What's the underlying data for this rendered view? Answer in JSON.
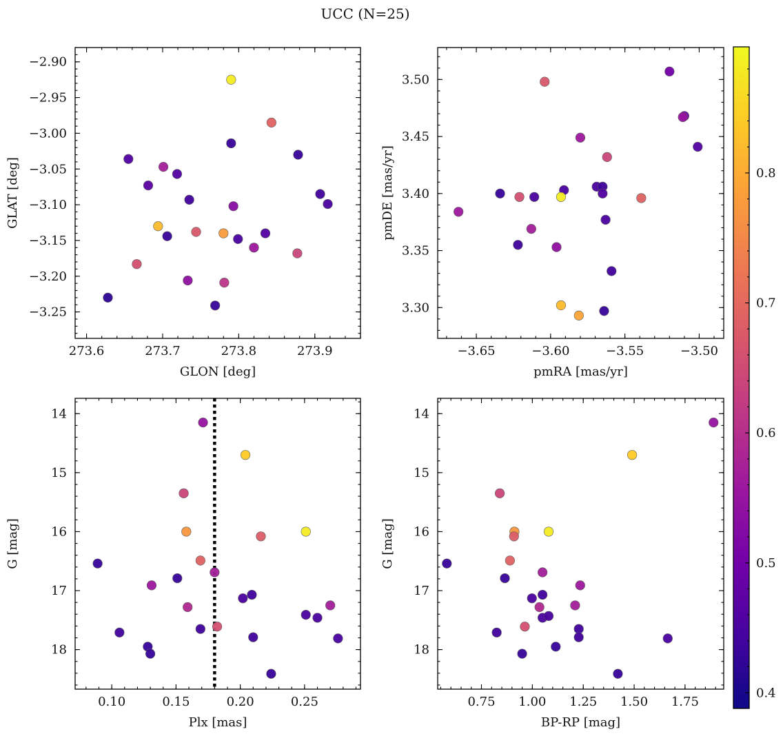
{
  "figure": {
    "title": "UCC (N=25)"
  },
  "chart_data": [
    {
      "type": "scatter",
      "id": "glon-glat",
      "xlabel": "GLON [deg]",
      "ylabel": "GLAT [deg]",
      "xlim": [
        273.585,
        273.96
      ],
      "ylim": [
        -3.287,
        -2.88
      ],
      "xticks": [
        273.6,
        273.7,
        273.8,
        273.9
      ],
      "xtick_labels": [
        "273.6",
        "273.7",
        "273.8",
        "273.9"
      ],
      "yticks": [
        -2.9,
        -2.95,
        -3.0,
        -3.05,
        -3.1,
        -3.15,
        -3.2,
        -3.25
      ],
      "ytick_labels": [
        "−2.90",
        "−2.95",
        "−3.00",
        "−3.05",
        "−3.10",
        "−3.15",
        "−3.20",
        "−3.25"
      ],
      "points": [
        {
          "x": 273.79,
          "y": -2.925,
          "c": 0.88
        },
        {
          "x": 273.843,
          "y": -2.985,
          "c": 0.69
        },
        {
          "x": 273.79,
          "y": -3.014,
          "c": 0.43
        },
        {
          "x": 273.878,
          "y": -3.03,
          "c": 0.43
        },
        {
          "x": 273.655,
          "y": -3.036,
          "c": 0.46
        },
        {
          "x": 273.701,
          "y": -3.047,
          "c": 0.57
        },
        {
          "x": 273.719,
          "y": -3.057,
          "c": 0.46
        },
        {
          "x": 273.681,
          "y": -3.073,
          "c": 0.47
        },
        {
          "x": 273.907,
          "y": -3.085,
          "c": 0.44
        },
        {
          "x": 273.735,
          "y": -3.093,
          "c": 0.44
        },
        {
          "x": 273.917,
          "y": -3.099,
          "c": 0.45
        },
        {
          "x": 273.793,
          "y": -3.102,
          "c": 0.53
        },
        {
          "x": 273.694,
          "y": -3.13,
          "c": 0.82
        },
        {
          "x": 273.744,
          "y": -3.138,
          "c": 0.67
        },
        {
          "x": 273.78,
          "y": -3.14,
          "c": 0.78
        },
        {
          "x": 273.835,
          "y": -3.14,
          "c": 0.46
        },
        {
          "x": 273.706,
          "y": -3.144,
          "c": 0.43
        },
        {
          "x": 273.799,
          "y": -3.148,
          "c": 0.45
        },
        {
          "x": 273.82,
          "y": -3.16,
          "c": 0.56
        },
        {
          "x": 273.877,
          "y": -3.168,
          "c": 0.64
        },
        {
          "x": 273.666,
          "y": -3.183,
          "c": 0.66
        },
        {
          "x": 273.733,
          "y": -3.206,
          "c": 0.54
        },
        {
          "x": 273.781,
          "y": -3.209,
          "c": 0.61
        },
        {
          "x": 273.628,
          "y": -3.23,
          "c": 0.42
        },
        {
          "x": 273.769,
          "y": -3.241,
          "c": 0.43
        }
      ]
    },
    {
      "type": "scatter",
      "id": "pmra-pmde",
      "xlabel": "pmRA [mas/yr]",
      "ylabel": "pmDE [mas/yr]",
      "xlim": [
        -3.676,
        -3.4835
      ],
      "ylim": [
        3.273,
        3.528
      ],
      "xticks": [
        -3.65,
        -3.6,
        -3.55,
        -3.5
      ],
      "xtick_labels": [
        "−3.65",
        "−3.60",
        "−3.55",
        "−3.50"
      ],
      "yticks": [
        3.3,
        3.35,
        3.4,
        3.45,
        3.5
      ],
      "ytick_labels": [
        "3.30",
        "3.35",
        "3.40",
        "3.45",
        "3.50"
      ],
      "points": [
        {
          "x": -3.52,
          "y": 3.507,
          "c": 0.5
        },
        {
          "x": -3.604,
          "y": 3.498,
          "c": 0.67
        },
        {
          "x": -3.51,
          "y": 3.468,
          "c": 0.5
        },
        {
          "x": -3.511,
          "y": 3.467,
          "c": 0.55
        },
        {
          "x": -3.58,
          "y": 3.449,
          "c": 0.56
        },
        {
          "x": -3.501,
          "y": 3.441,
          "c": 0.46
        },
        {
          "x": -3.562,
          "y": 3.432,
          "c": 0.64
        },
        {
          "x": -3.569,
          "y": 3.406,
          "c": 0.45
        },
        {
          "x": -3.565,
          "y": 3.406,
          "c": 0.44
        },
        {
          "x": -3.591,
          "y": 3.403,
          "c": 0.45
        },
        {
          "x": -3.634,
          "y": 3.4,
          "c": 0.43
        },
        {
          "x": -3.565,
          "y": 3.4,
          "c": 0.46
        },
        {
          "x": -3.621,
          "y": 3.397,
          "c": 0.66
        },
        {
          "x": -3.611,
          "y": 3.397,
          "c": 0.45
        },
        {
          "x": -3.593,
          "y": 3.397,
          "c": 0.88
        },
        {
          "x": -3.539,
          "y": 3.396,
          "c": 0.69
        },
        {
          "x": -3.662,
          "y": 3.384,
          "c": 0.56
        },
        {
          "x": -3.563,
          "y": 3.377,
          "c": 0.45
        },
        {
          "x": -3.613,
          "y": 3.369,
          "c": 0.57
        },
        {
          "x": -3.622,
          "y": 3.355,
          "c": 0.44
        },
        {
          "x": -3.596,
          "y": 3.353,
          "c": 0.54
        },
        {
          "x": -3.559,
          "y": 3.332,
          "c": 0.44
        },
        {
          "x": -3.593,
          "y": 3.302,
          "c": 0.82
        },
        {
          "x": -3.564,
          "y": 3.297,
          "c": 0.43
        },
        {
          "x": -3.581,
          "y": 3.293,
          "c": 0.79
        }
      ]
    },
    {
      "type": "scatter",
      "id": "plx-g",
      "xlabel": "Plx [mas]",
      "ylabel": "G [mag]",
      "xlim": [
        0.0715,
        0.2935
      ],
      "ylim": [
        18.67,
        13.74
      ],
      "y_inverted": true,
      "xticks": [
        0.1,
        0.15,
        0.2,
        0.25
      ],
      "xtick_labels": [
        "0.10",
        "0.15",
        "0.20",
        "0.25"
      ],
      "yticks": [
        14,
        15,
        16,
        17,
        18
      ],
      "ytick_labels": [
        "14",
        "15",
        "16",
        "17",
        "18"
      ],
      "vline": 0.18,
      "points": [
        {
          "x": 0.171,
          "y": 14.15,
          "c": 0.55
        },
        {
          "x": 0.204,
          "y": 14.7,
          "c": 0.84
        },
        {
          "x": 0.156,
          "y": 15.35,
          "c": 0.64
        },
        {
          "x": 0.158,
          "y": 16.0,
          "c": 0.77
        },
        {
          "x": 0.251,
          "y": 16.0,
          "c": 0.88
        },
        {
          "x": 0.216,
          "y": 16.08,
          "c": 0.68
        },
        {
          "x": 0.169,
          "y": 16.49,
          "c": 0.69
        },
        {
          "x": 0.089,
          "y": 16.54,
          "c": 0.43
        },
        {
          "x": 0.18,
          "y": 16.69,
          "c": 0.57
        },
        {
          "x": 0.151,
          "y": 16.79,
          "c": 0.43
        },
        {
          "x": 0.131,
          "y": 16.91,
          "c": 0.56
        },
        {
          "x": 0.209,
          "y": 17.07,
          "c": 0.44
        },
        {
          "x": 0.202,
          "y": 17.13,
          "c": 0.45
        },
        {
          "x": 0.27,
          "y": 17.25,
          "c": 0.57
        },
        {
          "x": 0.159,
          "y": 17.28,
          "c": 0.59
        },
        {
          "x": 0.251,
          "y": 17.41,
          "c": 0.45
        },
        {
          "x": 0.26,
          "y": 17.46,
          "c": 0.45
        },
        {
          "x": 0.182,
          "y": 17.61,
          "c": 0.66
        },
        {
          "x": 0.169,
          "y": 17.65,
          "c": 0.44
        },
        {
          "x": 0.106,
          "y": 17.71,
          "c": 0.44
        },
        {
          "x": 0.21,
          "y": 17.79,
          "c": 0.44
        },
        {
          "x": 0.276,
          "y": 17.81,
          "c": 0.45
        },
        {
          "x": 0.128,
          "y": 17.95,
          "c": 0.43
        },
        {
          "x": 0.13,
          "y": 18.07,
          "c": 0.43
        },
        {
          "x": 0.224,
          "y": 18.41,
          "c": 0.43
        }
      ]
    },
    {
      "type": "scatter",
      "id": "bprp-g",
      "xlabel": "BP-RP [mag]",
      "ylabel": "G [mag]",
      "xlim": [
        0.535,
        1.94
      ],
      "ylim": [
        18.67,
        13.74
      ],
      "y_inverted": true,
      "xticks": [
        0.75,
        1.0,
        1.25,
        1.5,
        1.75
      ],
      "xtick_labels": [
        "0.75",
        "1.00",
        "1.25",
        "1.50",
        "1.75"
      ],
      "yticks": [
        14,
        15,
        16,
        17,
        18
      ],
      "ytick_labels": [
        "14",
        "15",
        "16",
        "17",
        "18"
      ],
      "points": [
        {
          "x": 1.89,
          "y": 14.15,
          "c": 0.55
        },
        {
          "x": 1.49,
          "y": 14.7,
          "c": 0.84
        },
        {
          "x": 0.84,
          "y": 15.35,
          "c": 0.64
        },
        {
          "x": 0.912,
          "y": 16.0,
          "c": 0.77
        },
        {
          "x": 1.08,
          "y": 16.0,
          "c": 0.88
        },
        {
          "x": 0.91,
          "y": 16.08,
          "c": 0.68
        },
        {
          "x": 0.89,
          "y": 16.49,
          "c": 0.69
        },
        {
          "x": 0.58,
          "y": 16.54,
          "c": 0.43
        },
        {
          "x": 1.05,
          "y": 16.69,
          "c": 0.57
        },
        {
          "x": 0.865,
          "y": 16.79,
          "c": 0.43
        },
        {
          "x": 1.235,
          "y": 16.91,
          "c": 0.56
        },
        {
          "x": 1.05,
          "y": 17.07,
          "c": 0.44
        },
        {
          "x": 0.998,
          "y": 17.13,
          "c": 0.45
        },
        {
          "x": 1.21,
          "y": 17.25,
          "c": 0.57
        },
        {
          "x": 1.035,
          "y": 17.28,
          "c": 0.59
        },
        {
          "x": 1.05,
          "y": 17.46,
          "c": 0.45
        },
        {
          "x": 1.08,
          "y": 17.43,
          "c": 0.45
        },
        {
          "x": 0.963,
          "y": 17.61,
          "c": 0.66
        },
        {
          "x": 1.228,
          "y": 17.65,
          "c": 0.44
        },
        {
          "x": 0.825,
          "y": 17.71,
          "c": 0.44
        },
        {
          "x": 1.228,
          "y": 17.79,
          "c": 0.44
        },
        {
          "x": 1.665,
          "y": 17.81,
          "c": 0.45
        },
        {
          "x": 1.115,
          "y": 17.95,
          "c": 0.43
        },
        {
          "x": 0.95,
          "y": 18.07,
          "c": 0.43
        },
        {
          "x": 1.42,
          "y": 18.41,
          "c": 0.43
        }
      ]
    }
  ],
  "colorbar": {
    "colormap": "plasma",
    "range": [
      0.388,
      0.897
    ],
    "ticks": [
      0.4,
      0.5,
      0.6,
      0.7,
      0.8
    ],
    "tick_labels": [
      "0.4",
      "0.5",
      "0.6",
      "0.7",
      "0.8"
    ]
  },
  "colors": {
    "plasma_stops": [
      "#0d0887",
      "#46039f",
      "#7201a8",
      "#9c179e",
      "#bd3786",
      "#d8576b",
      "#ed7953",
      "#fb9f3a",
      "#fdca26",
      "#f0f921"
    ]
  }
}
